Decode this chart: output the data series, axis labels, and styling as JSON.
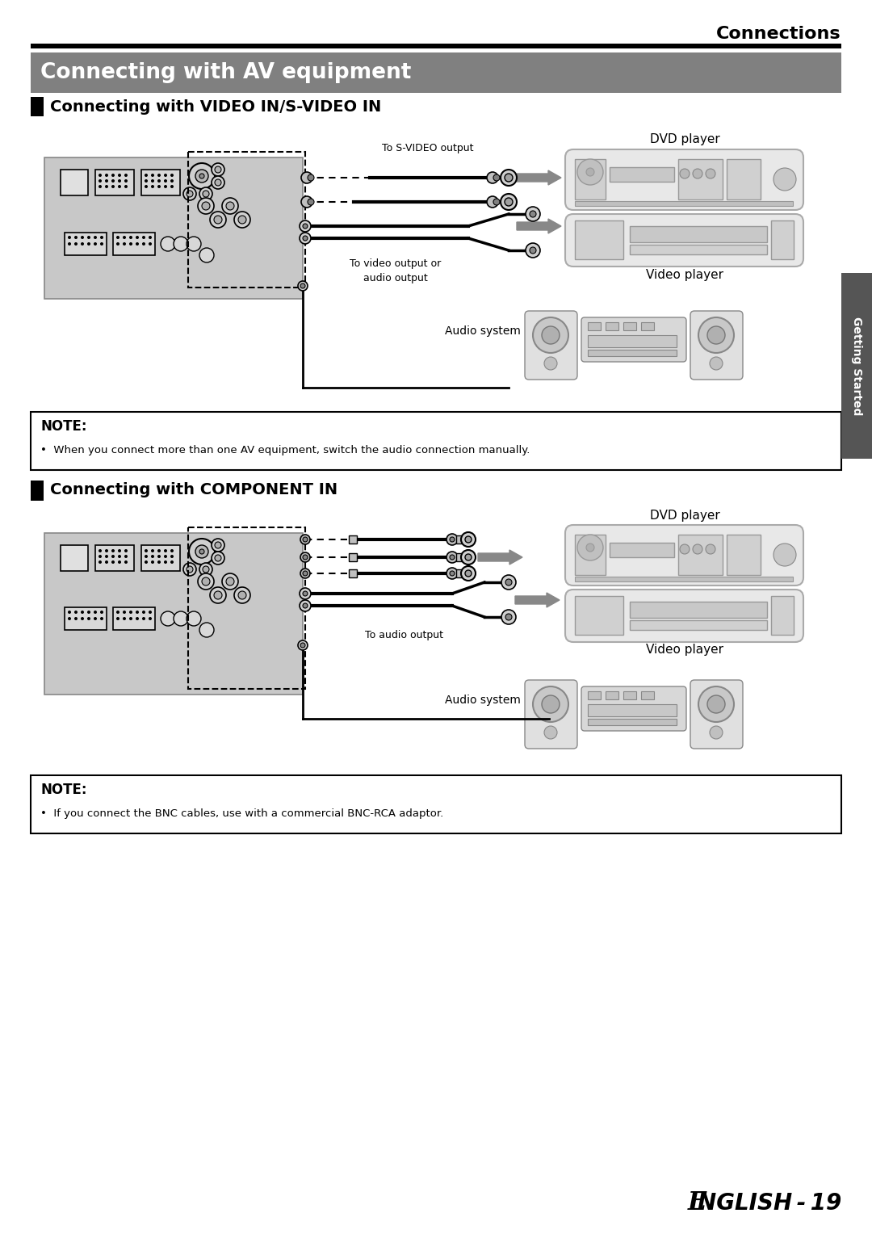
{
  "page_title": "Connections",
  "main_heading": "Connecting with AV equipment",
  "section1_title": "Connecting with VIDEO IN/S-VIDEO IN",
  "section2_title": "Connecting with COMPONENT IN",
  "note1_label": "NOTE:",
  "note1_text": "When you connect more than one AV equipment, switch the audio connection manually.",
  "note2_label": "NOTE:",
  "note2_text": "If you connect the BNC cables, use with a commercial BNC-RCA adaptor.",
  "label_svideo": "To S-VIDEO output",
  "label_video_audio": "To video output or\naudio output",
  "label_audio_system1": "Audio system",
  "label_audio_system2": "Audio system",
  "label_audio_output": "To audio output",
  "label_dvd1": "DVD player",
  "label_video1": "Video player",
  "label_dvd2": "DVD player",
  "label_video2": "Video player",
  "footer_E": "E",
  "footer_rest": "NGLISH - 19",
  "sidebar_text": "Getting Started",
  "bg_color": "#ffffff",
  "main_heading_bg": "#808080",
  "main_heading_color": "#ffffff",
  "sidebar_bg": "#555555",
  "sidebar_text_color": "#ffffff",
  "projector_bg": "#c8c8c8",
  "device_bg": "#e0e0e0",
  "device_border": "#aaaaaa"
}
